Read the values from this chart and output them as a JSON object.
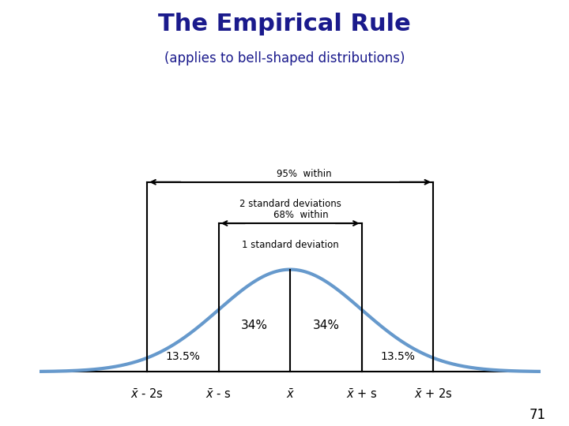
{
  "title": "The Empirical Rule",
  "subtitle": "(applies to bell-shaped distributions)",
  "title_color": "#1a1a8c",
  "subtitle_color": "#1a1a8c",
  "curve_color": "#6699cc",
  "curve_linewidth": 3.0,
  "line_color": "#000000",
  "text_color": "#000000",
  "bg_color": "#ffffff",
  "percent_34": "34%",
  "percent_135": "13.5%",
  "label_95": "95%  within",
  "label_95_sub": "2 standard deviations",
  "label_68": "68%  within",
  "label_68_sub": "1 standard deviation",
  "page_number": "71"
}
